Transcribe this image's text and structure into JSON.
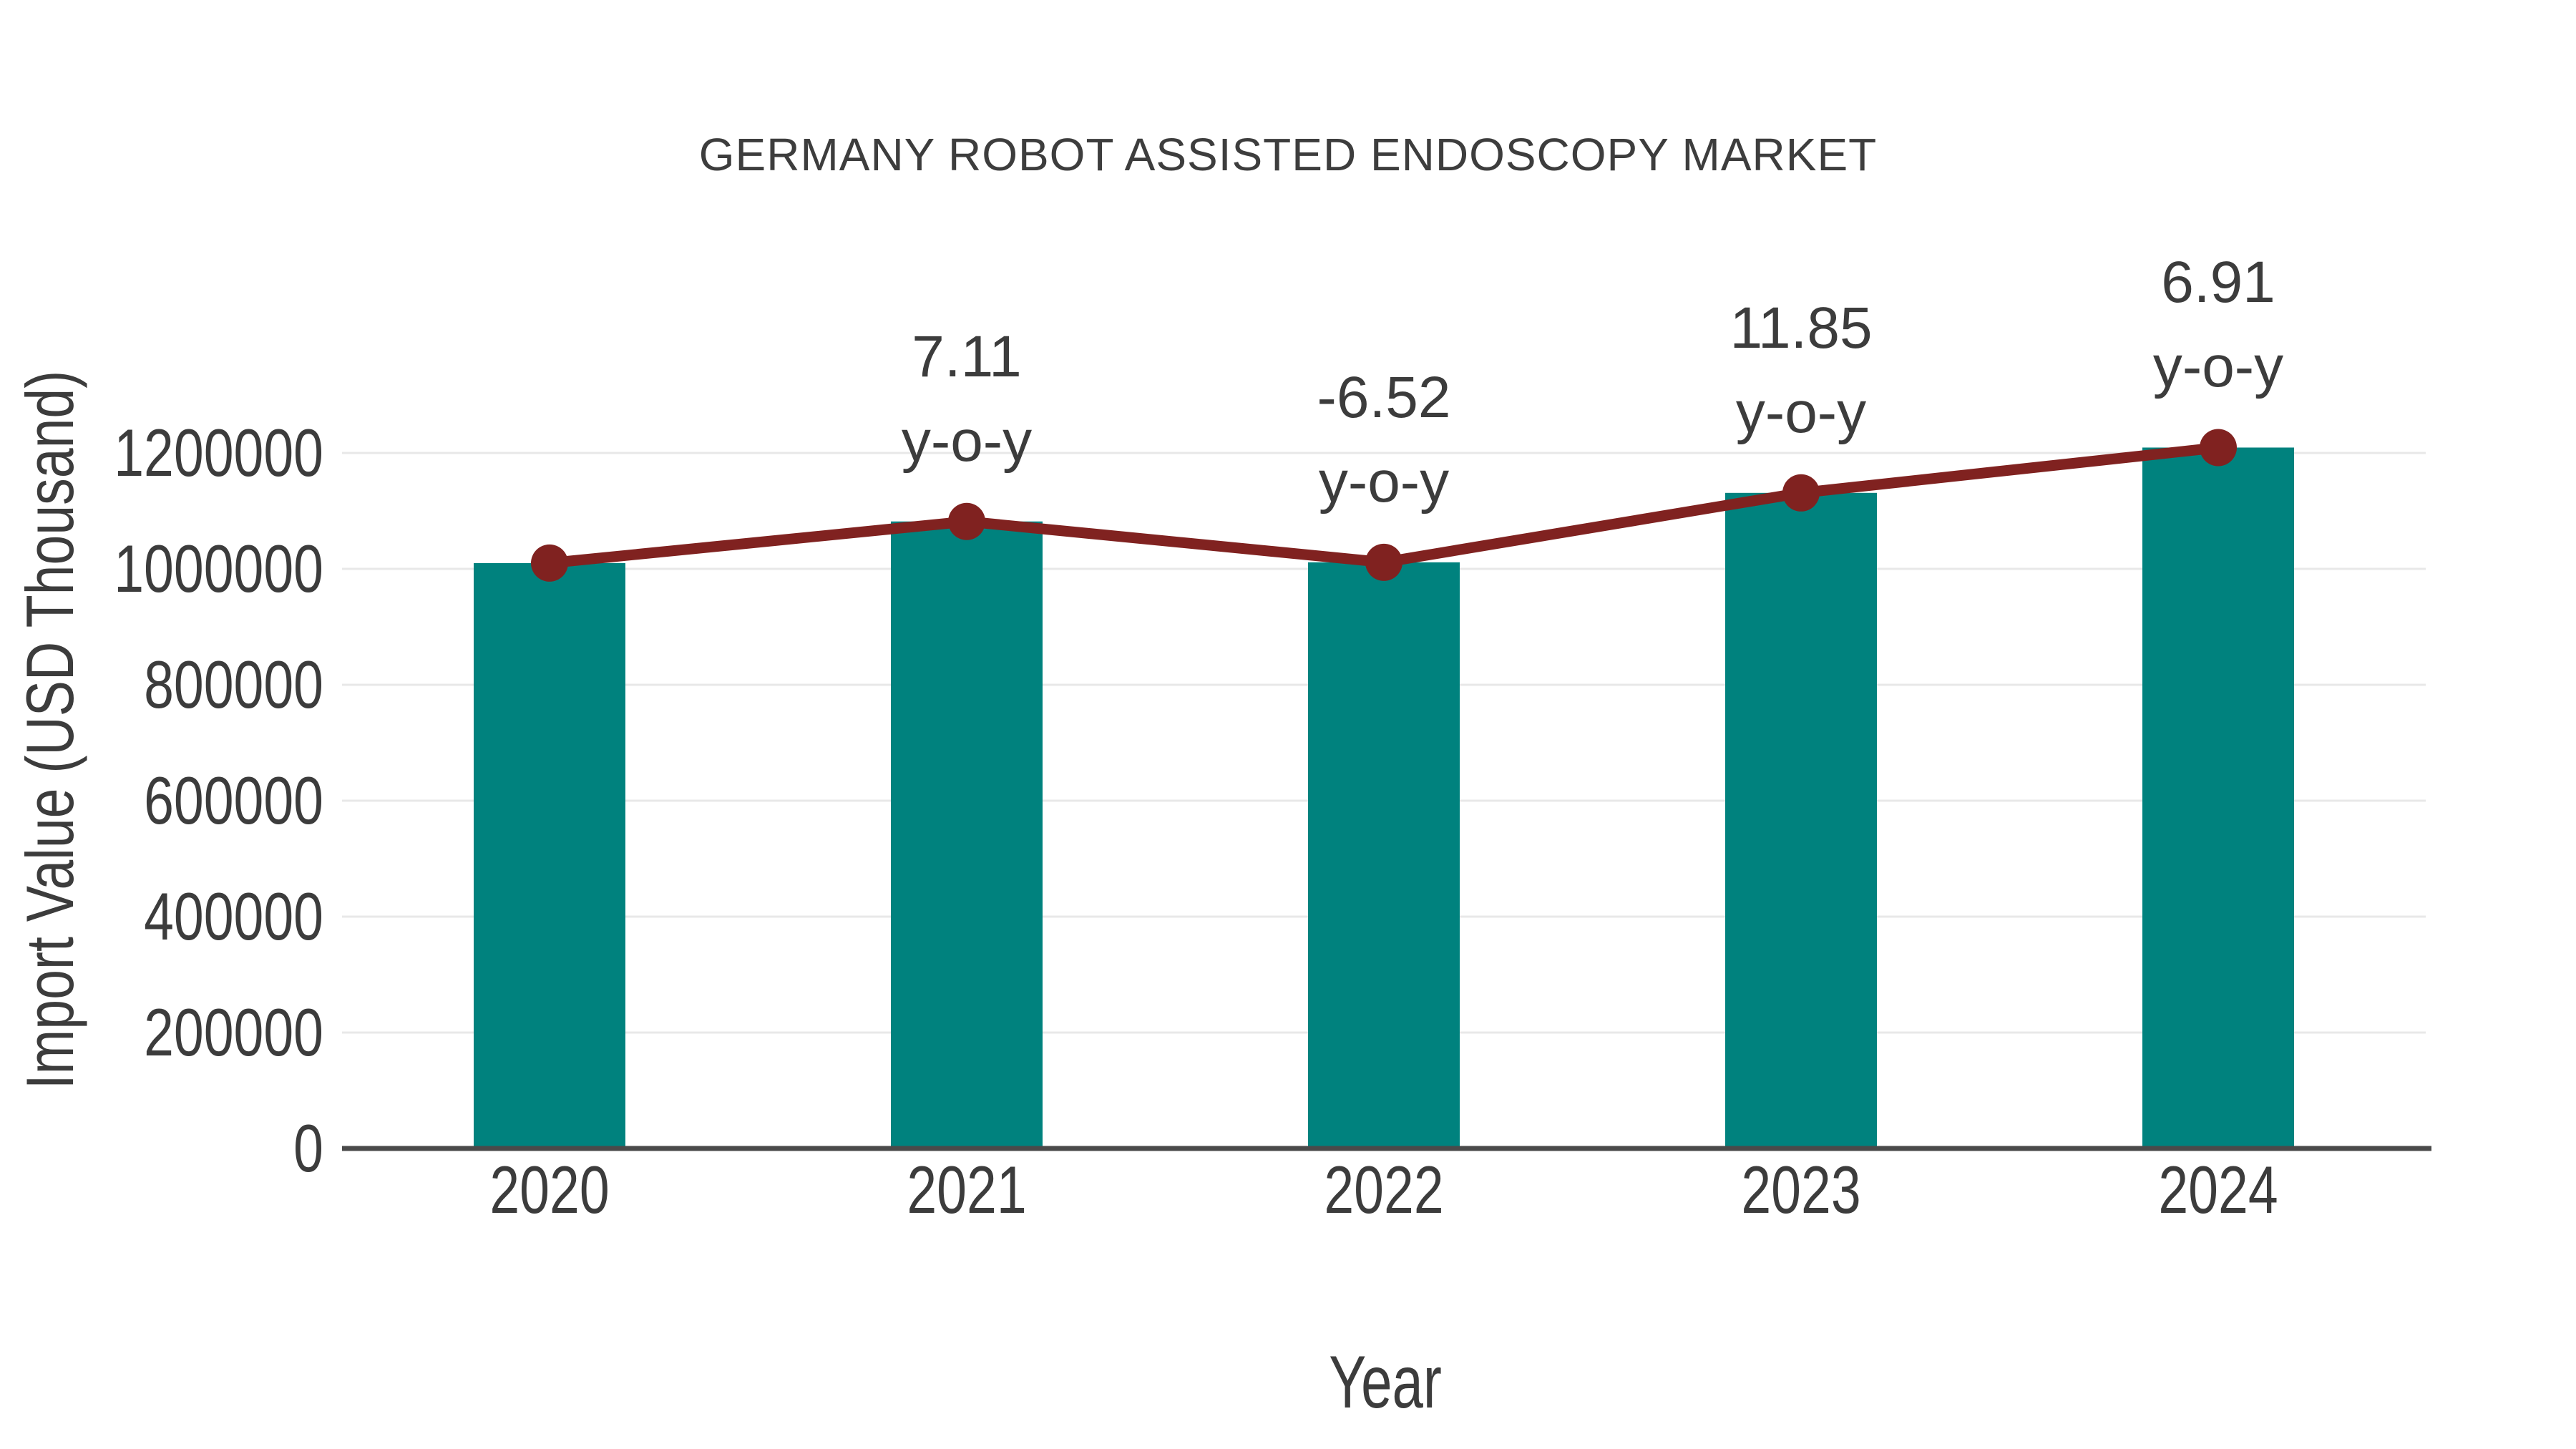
{
  "chart": {
    "title": "GERMANY ROBOT ASSISTED ENDOSCOPY MARKET",
    "x_axis_title": "Year",
    "y_axis_title": "Import Value (USD Thousand)"
  },
  "chart_data": {
    "type": "bar",
    "title": "GERMANY ROBOT ASSISTED ENDOSCOPY MARKET",
    "xlabel": "Year",
    "ylabel": "Import Value (USD Thousand)",
    "categories": [
      "2020",
      "2021",
      "2022",
      "2023",
      "2024"
    ],
    "series": [
      {
        "name": "Import Value (USD Thousand)",
        "type": "bar",
        "color": "#00827E",
        "values": [
          1010000,
          1081800,
          1011300,
          1131100,
          1209300
        ]
      },
      {
        "name": "y-o-y change (%)",
        "type": "line",
        "color": "#802220",
        "values": [
          null,
          7.11,
          -6.52,
          11.85,
          6.91
        ],
        "drawn_through_bar_tops": true
      }
    ],
    "annotations": [
      {
        "category": "2021",
        "value_label": "7.11",
        "suffix_label": "y-o-y"
      },
      {
        "category": "2022",
        "value_label": "-6.52",
        "suffix_label": "y-o-y"
      },
      {
        "category": "2023",
        "value_label": "11.85",
        "suffix_label": "y-o-y"
      },
      {
        "category": "2024",
        "value_label": "6.91",
        "suffix_label": "y-o-y"
      }
    ],
    "y_tick_labels": [
      "0",
      "200000",
      "400000",
      "600000",
      "800000",
      "1000000",
      "1200000"
    ],
    "yticks": [
      0,
      200000,
      400000,
      600000,
      800000,
      1000000,
      1200000
    ],
    "ylim": [
      0,
      1300000
    ],
    "grid": true,
    "legend": false
  },
  "style": {
    "bar_color": "#00827E",
    "line_color": "#802220",
    "marker_color": "#802220",
    "text_color": "#3C3C3C",
    "grid_color": "#E8E8E8",
    "axis_color": "#4A4A4A",
    "background": "#FFFFFF"
  }
}
